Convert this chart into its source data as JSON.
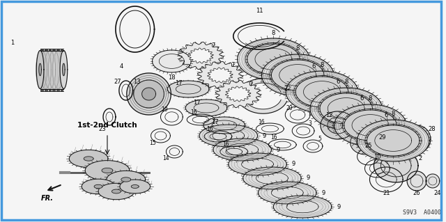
{
  "background_color": "#f5f5f5",
  "border_color": "#4499dd",
  "label_1st2nd": "1st-2nd Clutch",
  "label_fr": "FR.",
  "code": "S9V3  A0400",
  "fig_width": 6.4,
  "fig_height": 3.19,
  "dpi": 100
}
